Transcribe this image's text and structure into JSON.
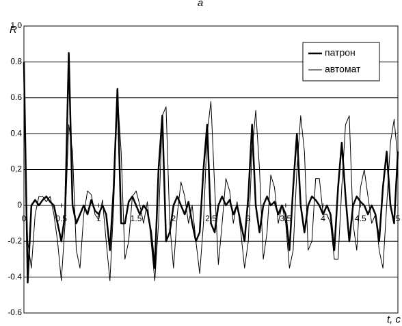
{
  "chart_data": {
    "type": "line",
    "title": "a",
    "ylabel": "R",
    "xlabel": "t, c",
    "x": [
      0,
      0.05,
      0.1,
      0.15,
      0.2,
      0.25,
      0.3,
      0.35,
      0.4,
      0.45,
      0.5,
      0.55,
      0.6,
      0.65,
      0.7,
      0.75,
      0.8,
      0.85,
      0.9,
      0.95,
      1,
      1.05,
      1.1,
      1.15,
      1.2,
      1.25,
      1.3,
      1.35,
      1.4,
      1.45,
      1.5,
      1.55,
      1.6,
      1.65,
      1.7,
      1.75,
      1.8,
      1.85,
      1.9,
      1.95,
      2,
      2.05,
      2.1,
      2.15,
      2.2,
      2.25,
      2.3,
      2.35,
      2.4,
      2.45,
      2.5,
      2.55,
      2.6,
      2.65,
      2.7,
      2.75,
      2.8,
      2.85,
      2.9,
      2.95,
      3,
      3.05,
      3.1,
      3.15,
      3.2,
      3.25,
      3.3,
      3.35,
      3.4,
      3.45,
      3.5,
      3.55,
      3.6,
      3.65,
      3.7,
      3.75,
      3.8,
      3.85,
      3.9,
      3.95,
      4,
      4.05,
      4.1,
      4.15,
      4.2,
      4.25,
      4.3,
      4.35,
      4.4,
      4.45,
      4.5,
      4.55,
      4.6,
      4.65,
      4.7,
      4.75,
      4.8,
      4.85,
      4.9,
      4.95,
      5
    ],
    "series": [
      {
        "name": "патрон",
        "color": "#000000",
        "line_width": 2.5,
        "values": [
          0.8,
          -0.43,
          0,
          0.03,
          0,
          0.03,
          0.05,
          0.02,
          0,
          -0.1,
          -0.2,
          -0.05,
          0.85,
          0,
          -0.1,
          -0.05,
          0,
          -0.05,
          0.03,
          -0.03,
          -0.05,
          0,
          -0.05,
          -0.25,
          0.1,
          0.65,
          -0.1,
          -0.1,
          0.02,
          0.05,
          0,
          -0.05,
          0,
          -0.03,
          -0.15,
          -0.35,
          0.2,
          0.5,
          -0.2,
          -0.15,
          0,
          0.05,
          0,
          -0.05,
          0.02,
          -0.1,
          -0.2,
          -0.15,
          0.2,
          0.45,
          -0.1,
          -0.15,
          0,
          0.05,
          0,
          0.03,
          -0.05,
          0,
          -0.1,
          -0.2,
          0.05,
          0.45,
          0,
          -0.15,
          0,
          0.05,
          0,
          0.02,
          -0.05,
          0,
          -0.05,
          -0.25,
          0.1,
          0.4,
          0,
          -0.15,
          0,
          0.05,
          0.03,
          0,
          -0.05,
          0,
          -0.05,
          -0.25,
          0.1,
          0.35,
          0.05,
          -0.2,
          0,
          0.05,
          0.02,
          0,
          -0.05,
          0,
          -0.05,
          -0.2,
          0.1,
          0.3,
          0,
          -0.1,
          0.3
        ]
      },
      {
        "name": "автомат",
        "color": "#000000",
        "line_width": 1,
        "values": [
          0.55,
          -0.2,
          -0.35,
          -0.05,
          0.05,
          0.05,
          0.02,
          0.05,
          -0.05,
          -0.2,
          -0.42,
          -0.1,
          0.45,
          0.3,
          -0.25,
          -0.35,
          -0.05,
          0.08,
          0.06,
          -0.05,
          -0.08,
          0.03,
          -0.2,
          -0.42,
          0,
          0.62,
          0.3,
          -0.3,
          -0.2,
          0.05,
          0.08,
          0,
          -0.1,
          0.02,
          -0.2,
          -0.42,
          -0.1,
          0.5,
          0.55,
          -0.1,
          -0.35,
          -0.05,
          0.13,
          0.05,
          -0.1,
          0,
          -0.2,
          -0.38,
          -0.1,
          0.4,
          0.58,
          0.1,
          -0.33,
          -0.1,
          0.15,
          0.08,
          -0.1,
          0.02,
          -0.15,
          -0.35,
          -0.2,
          0.3,
          0.53,
          0.2,
          -0.3,
          -0.15,
          0.17,
          0.1,
          -0.1,
          0,
          -0.1,
          -0.35,
          -0.25,
          0.2,
          0.5,
          0.3,
          -0.25,
          -0.2,
          0.15,
          0.15,
          -0.05,
          -0.05,
          -0.1,
          -0.3,
          -0.3,
          0.1,
          0.45,
          0.5,
          -0.1,
          -0.25,
          0.1,
          0.2,
          0.05,
          -0.1,
          -0.05,
          -0.25,
          -0.35,
          0,
          0.35,
          0.48,
          0.25
        ]
      }
    ],
    "xlim": [
      0,
      5
    ],
    "xticks": [
      0,
      0.5,
      1,
      1.5,
      2,
      2.5,
      3,
      3.5,
      4,
      4.5,
      5
    ],
    "ylim": [
      -0.6,
      1
    ],
    "yticks": [
      {
        "value": 1,
        "label": "1,0"
      },
      0.8,
      0.6,
      0.4,
      {
        "value": 0.2,
        "label": "0,2"
      },
      0,
      -0.2,
      -0.4,
      -0.6
    ],
    "grid": true,
    "legend": "upper right"
  }
}
